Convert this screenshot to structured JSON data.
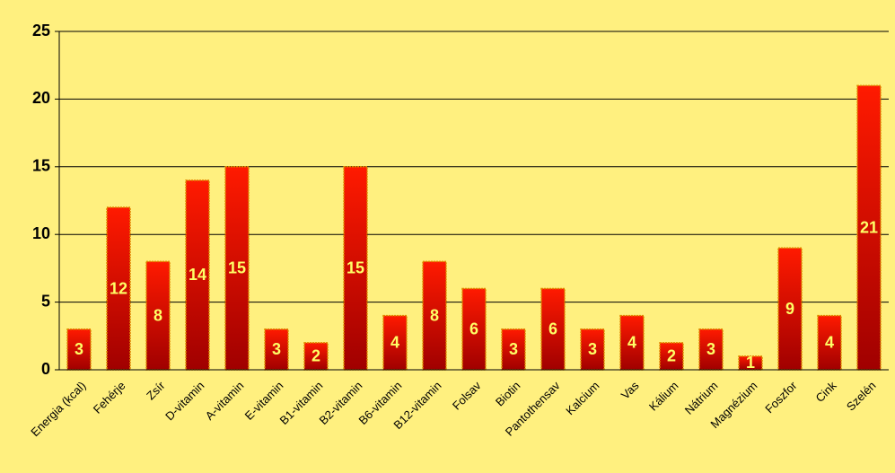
{
  "chart_data": {
    "type": "bar",
    "categories": [
      "Energia (kcal)",
      "Fehérje",
      "Zsír",
      "D-vitamin",
      "A-vitamin",
      "E-vitamin",
      "B1-vitamin",
      "B2-vitamin",
      "B6-vitamin",
      "B12-vitamin",
      "Folsav",
      "Biotin",
      "Pantothensav",
      "Kalcium",
      "Vas",
      "Kálium",
      "Nátrium",
      "Magnézium",
      "Foszfor",
      "Cink",
      "Szelén"
    ],
    "values": [
      3,
      12,
      8,
      14,
      15,
      3,
      2,
      15,
      4,
      8,
      6,
      3,
      6,
      3,
      4,
      2,
      3,
      1,
      9,
      4,
      21
    ],
    "color": "#ff0000",
    "ylim": [
      0,
      25
    ],
    "yticks": [
      0,
      5,
      10,
      15,
      20,
      25
    ],
    "grid": true
  }
}
